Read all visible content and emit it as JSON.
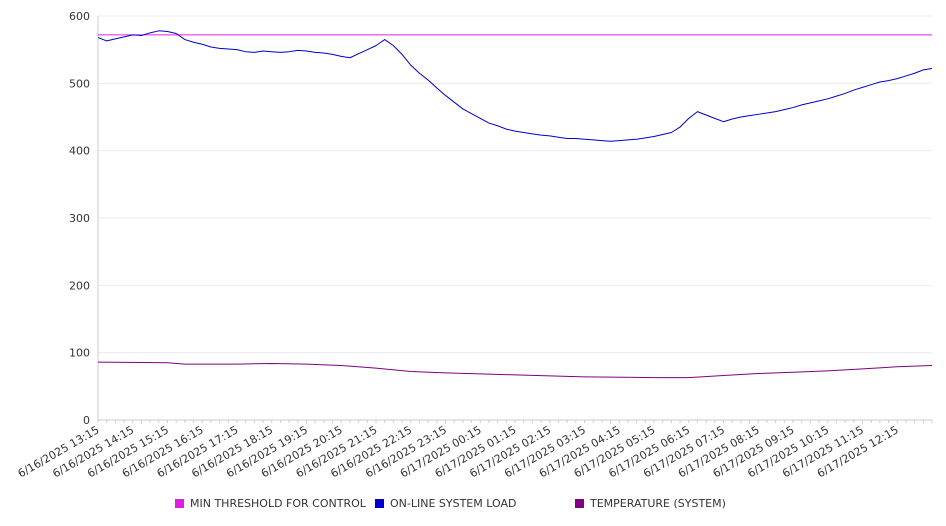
{
  "chart_data": {
    "type": "line",
    "ylim": [
      0,
      600
    ],
    "yticks": [
      0,
      100,
      200,
      300,
      400,
      500,
      600
    ],
    "grid": true,
    "legend_position": "bottom",
    "x_start": "6/16/2025 13:15",
    "x_end": "6/17/2025 13:15",
    "x_tick_labels": [
      "6/16/2025 13:15",
      "6/16/2025 14:15",
      "6/16/2025 15:15",
      "6/16/2025 16:15",
      "6/16/2025 17:15",
      "6/16/2025 18:15",
      "6/16/2025 19:15",
      "6/16/2025 20:15",
      "6/16/2025 21:15",
      "6/16/2025 22:15",
      "6/16/2025 23:15",
      "6/17/2025 00:15",
      "6/17/2025 01:15",
      "6/17/2025 02:15",
      "6/17/2025 03:15",
      "6/17/2025 04:15",
      "6/17/2025 05:15",
      "6/17/2025 06:15",
      "6/17/2025 07:15",
      "6/17/2025 08:15",
      "6/17/2025 09:15",
      "6/17/2025 10:15",
      "6/17/2025 11:15",
      "6/17/2025 12:15"
    ],
    "series": [
      {
        "name": "MIN THRESHOLD FOR CONTROL",
        "color": "#e020e0",
        "x": [
          "6/16/2025 13:15",
          "6/17/2025 13:15"
        ],
        "values": [
          572,
          572
        ]
      },
      {
        "name": "ON-LINE SYSTEM LOAD",
        "color": "#0000cc",
        "x": [
          "6/16/2025 13:15",
          "6/16/2025 13:30",
          "6/16/2025 13:45",
          "6/16/2025 14:00",
          "6/16/2025 14:15",
          "6/16/2025 14:30",
          "6/16/2025 14:45",
          "6/16/2025 15:00",
          "6/16/2025 15:15",
          "6/16/2025 15:30",
          "6/16/2025 15:45",
          "6/16/2025 16:00",
          "6/16/2025 16:15",
          "6/16/2025 16:30",
          "6/16/2025 16:45",
          "6/16/2025 17:00",
          "6/16/2025 17:15",
          "6/16/2025 17:30",
          "6/16/2025 17:45",
          "6/16/2025 18:00",
          "6/16/2025 18:15",
          "6/16/2025 18:30",
          "6/16/2025 18:45",
          "6/16/2025 19:00",
          "6/16/2025 19:15",
          "6/16/2025 19:30",
          "6/16/2025 19:45",
          "6/16/2025 20:00",
          "6/16/2025 20:15",
          "6/16/2025 20:30",
          "6/16/2025 20:45",
          "6/16/2025 21:00",
          "6/16/2025 21:15",
          "6/16/2025 21:30",
          "6/16/2025 21:45",
          "6/16/2025 22:00",
          "6/16/2025 22:15",
          "6/16/2025 22:30",
          "6/16/2025 22:45",
          "6/16/2025 23:00",
          "6/16/2025 23:15",
          "6/16/2025 23:30",
          "6/16/2025 23:45",
          "6/17/2025 00:00",
          "6/17/2025 00:15",
          "6/17/2025 00:30",
          "6/17/2025 00:45",
          "6/17/2025 01:00",
          "6/17/2025 01:15",
          "6/17/2025 01:30",
          "6/17/2025 01:45",
          "6/17/2025 02:00",
          "6/17/2025 02:15",
          "6/17/2025 02:30",
          "6/17/2025 02:45",
          "6/17/2025 03:00",
          "6/17/2025 03:15",
          "6/17/2025 03:30",
          "6/17/2025 03:45",
          "6/17/2025 04:00",
          "6/17/2025 04:15",
          "6/17/2025 04:30",
          "6/17/2025 04:45",
          "6/17/2025 05:00",
          "6/17/2025 05:15",
          "6/17/2025 05:30",
          "6/17/2025 05:45",
          "6/17/2025 06:00",
          "6/17/2025 06:15",
          "6/17/2025 06:30",
          "6/17/2025 06:45",
          "6/17/2025 07:00",
          "6/17/2025 07:15",
          "6/17/2025 07:30",
          "6/17/2025 07:45",
          "6/17/2025 08:00",
          "6/17/2025 08:15",
          "6/17/2025 08:30",
          "6/17/2025 08:45",
          "6/17/2025 09:00",
          "6/17/2025 09:15",
          "6/17/2025 09:30",
          "6/17/2025 09:45",
          "6/17/2025 10:00",
          "6/17/2025 10:15",
          "6/17/2025 10:30",
          "6/17/2025 10:45",
          "6/17/2025 11:00",
          "6/17/2025 11:15",
          "6/17/2025 11:30",
          "6/17/2025 11:45",
          "6/17/2025 12:00",
          "6/17/2025 12:15",
          "6/17/2025 12:30",
          "6/17/2025 12:45",
          "6/17/2025 13:00",
          "6/17/2025 13:15"
        ],
        "values": [
          568,
          563,
          566,
          569,
          572,
          571,
          575,
          578,
          577,
          574,
          565,
          561,
          558,
          554,
          552,
          551,
          550,
          547,
          546,
          548,
          547,
          546,
          547,
          549,
          548,
          546,
          545,
          543,
          540,
          538,
          544,
          550,
          556,
          565,
          556,
          543,
          527,
          515,
          505,
          493,
          482,
          472,
          462,
          455,
          448,
          441,
          437,
          432,
          429,
          427,
          425,
          423,
          422,
          420,
          418,
          418,
          417,
          416,
          415,
          414,
          415,
          416,
          417,
          419,
          421,
          424,
          427,
          435,
          448,
          458,
          453,
          448,
          443,
          447,
          450,
          452,
          454,
          456,
          458,
          461,
          464,
          468,
          471,
          474,
          477,
          481,
          485,
          490,
          494,
          498,
          502,
          504,
          507,
          511,
          515,
          520,
          522
        ]
      },
      {
        "name": "TEMPERATURE (SYSTEM)",
        "color": "#800080",
        "x": [
          "6/16/2025 13:15",
          "6/16/2025 15:15",
          "6/16/2025 15:45",
          "6/16/2025 17:15",
          "6/16/2025 18:15",
          "6/16/2025 19:15",
          "6/16/2025 20:15",
          "6/16/2025 21:15",
          "6/16/2025 22:15",
          "6/16/2025 23:15",
          "6/17/2025 01:15",
          "6/17/2025 03:15",
          "6/17/2025 05:15",
          "6/17/2025 06:15",
          "6/17/2025 07:15",
          "6/17/2025 08:15",
          "6/17/2025 09:15",
          "6/17/2025 10:15",
          "6/17/2025 11:15",
          "6/17/2025 12:15",
          "6/17/2025 13:15"
        ],
        "values": [
          86,
          85,
          83,
          83,
          84,
          83,
          81,
          77,
          72,
          70,
          67,
          64,
          63,
          63,
          66,
          69,
          71,
          73,
          76,
          79,
          81
        ]
      }
    ]
  }
}
